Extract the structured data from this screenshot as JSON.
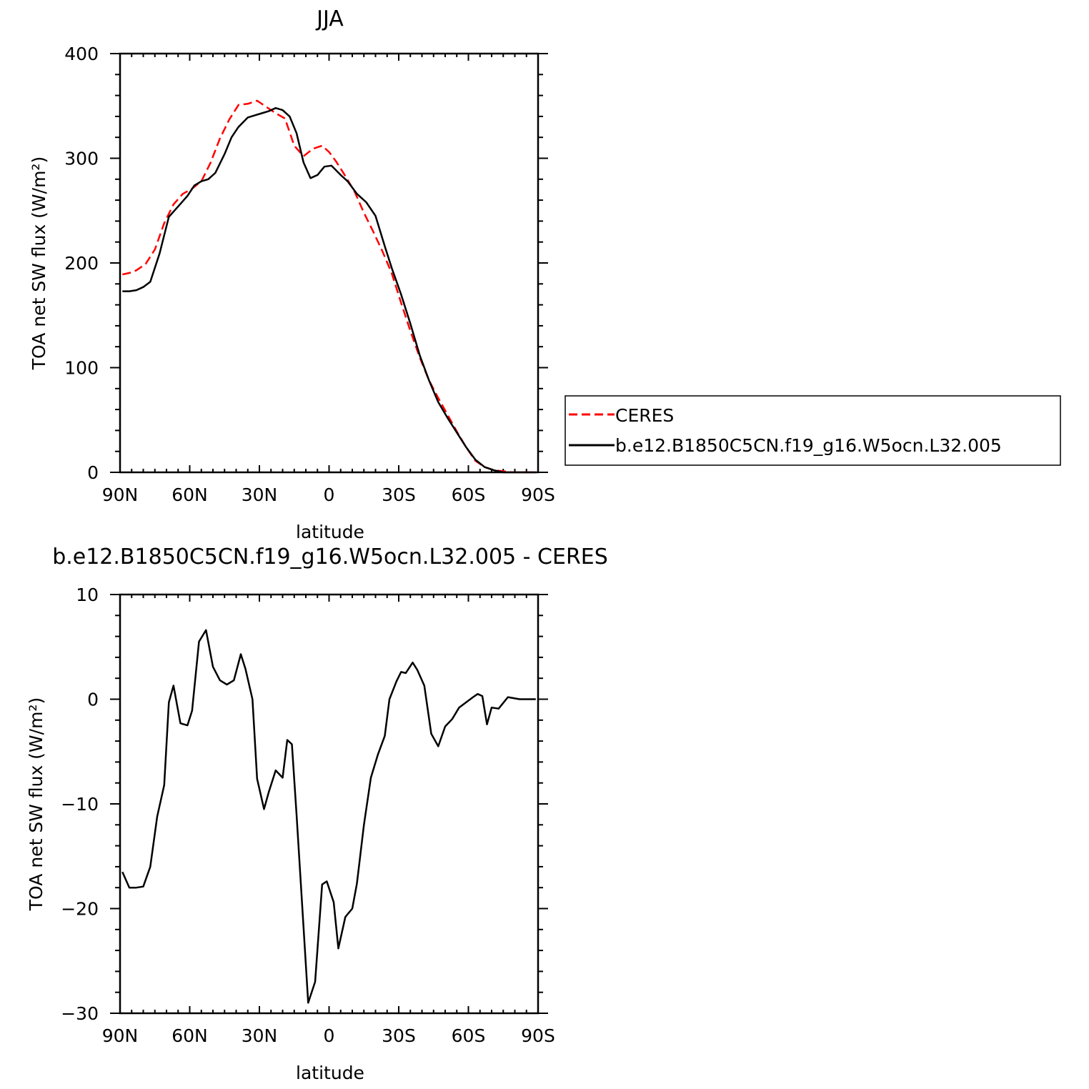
{
  "chart_data": [
    {
      "type": "line",
      "title": "JJA",
      "xlabel": "latitude",
      "ylabel": "TOA net SW flux (W/m²)",
      "xlim": [
        90,
        -90
      ],
      "ylim": [
        0,
        400
      ],
      "xticks": [
        90,
        60,
        30,
        0,
        -30,
        -60,
        -90
      ],
      "xtick_labels": [
        "90N",
        "60N",
        "30N",
        "0",
        "30S",
        "60S",
        "90S"
      ],
      "yticks": [
        0,
        100,
        200,
        300,
        400
      ],
      "ytick_labels": [
        "0",
        "100",
        "200",
        "300",
        "400"
      ],
      "legend_position": "right",
      "series": [
        {
          "name": "CERES",
          "color": "#ff0000",
          "dash": "dashed",
          "x": [
            89,
            85,
            83,
            79,
            75,
            71,
            67,
            63,
            59,
            55,
            51,
            47,
            43,
            39,
            35,
            31,
            27,
            23,
            19,
            15,
            11,
            7,
            3,
            0,
            -3,
            -7,
            -11,
            -15,
            -19,
            -23,
            -27,
            -31,
            -35,
            -39,
            -43,
            -47,
            -51,
            -55,
            -59,
            -63,
            -67,
            -71,
            -75,
            -79,
            -83,
            -89
          ],
          "y": [
            189,
            191,
            193,
            199,
            213,
            238,
            256,
            266,
            271,
            278,
            296,
            319,
            337,
            351,
            352,
            355,
            349,
            343,
            338,
            312,
            302,
            309,
            312,
            306,
            297,
            283,
            268,
            248,
            230,
            211,
            190,
            162,
            135,
            110,
            88,
            71,
            55,
            39,
            24,
            11,
            5,
            2,
            1,
            0,
            0,
            0
          ]
        },
        {
          "name": "b.e12.B1850C5CN.f19_g16.W5ocn.L32.005",
          "color": "#000000",
          "dash": "solid",
          "x": [
            89,
            86,
            83,
            80,
            77,
            73,
            69,
            65,
            61,
            58,
            55,
            52,
            49,
            45,
            42,
            39,
            35,
            32,
            29,
            26,
            23,
            20,
            17,
            14,
            11,
            8,
            5,
            2,
            -1,
            -5,
            -8,
            -12,
            -16,
            -20,
            -24,
            -27,
            -31,
            -35,
            -39,
            -43,
            -47,
            -51,
            -55,
            -59,
            -63,
            -67,
            -71,
            -75,
            -79,
            -83,
            -89
          ],
          "y": [
            173,
            173,
            174,
            177,
            182,
            209,
            244,
            254,
            264,
            274,
            278,
            280,
            286,
            304,
            320,
            330,
            339,
            341,
            343,
            345,
            348,
            346,
            340,
            324,
            296,
            281,
            284,
            292,
            293,
            284,
            278,
            266,
            258,
            245,
            216,
            195,
            170,
            142,
            112,
            88,
            67,
            52,
            38,
            24,
            12,
            5,
            2,
            0,
            0,
            0,
            0
          ]
        }
      ]
    },
    {
      "type": "line",
      "title": "b.e12.B1850C5CN.f19_g16.W5ocn.L32.005 - CERES",
      "xlabel": "latitude",
      "ylabel": "TOA net SW flux (W/m²)",
      "xlim": [
        90,
        -90
      ],
      "ylim": [
        -30,
        10
      ],
      "xticks": [
        90,
        60,
        30,
        0,
        -30,
        -60,
        -90
      ],
      "xtick_labels": [
        "90N",
        "60N",
        "30N",
        "0",
        "30S",
        "60S",
        "90S"
      ],
      "yticks": [
        -30,
        -20,
        -10,
        0,
        10
      ],
      "ytick_labels": [
        "-30",
        "-20",
        "-10",
        "0",
        "10"
      ],
      "series": [
        {
          "color": "#000000",
          "dash": "solid",
          "x": [
            89,
            86,
            83,
            80,
            77,
            74,
            71,
            69,
            67,
            64,
            61,
            59,
            56,
            53,
            50,
            47,
            44,
            41,
            38,
            36,
            33,
            31,
            28,
            26,
            23,
            20,
            18,
            16,
            14,
            11,
            9,
            6,
            3,
            1,
            -2,
            -4,
            -7,
            -10,
            -12,
            -15,
            -18,
            -21,
            -24,
            -26,
            -29,
            -31,
            -33,
            -36,
            -38,
            -41,
            -44,
            -47,
            -50,
            -53,
            -56,
            -59,
            -62,
            -64,
            -66,
            -68,
            -70,
            -73,
            -77,
            -82,
            -89
          ],
          "y": [
            -16.5,
            -18,
            -18,
            -17.9,
            -16,
            -11.2,
            -8.2,
            -0.3,
            1.3,
            -2.3,
            -2.5,
            -1.1,
            5.5,
            6.6,
            3.1,
            1.8,
            1.4,
            1.8,
            4.3,
            2.9,
            0,
            -7.6,
            -10.5,
            -8.9,
            -6.8,
            -7.5,
            -3.9,
            -4.3,
            -11,
            -21.8,
            -29,
            -27,
            -17.7,
            -17.4,
            -19.4,
            -23.8,
            -20.8,
            -20,
            -17.6,
            -12,
            -7.5,
            -5.3,
            -3.5,
            0,
            1.7,
            2.6,
            2.5,
            3.5,
            2.8,
            1.3,
            -3.3,
            -4.5,
            -2.6,
            -1.9,
            -0.8,
            -0.3,
            0.2,
            0.5,
            0.3,
            -2.4,
            -0.8,
            -0.9,
            0.2,
            0,
            0
          ]
        }
      ]
    }
  ]
}
